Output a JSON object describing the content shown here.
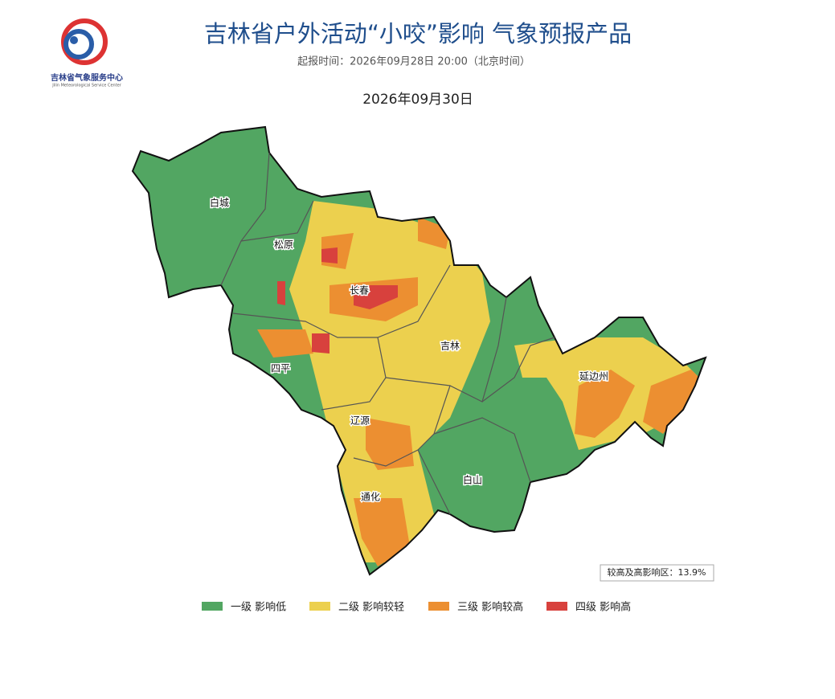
{
  "header": {
    "logo_name": "吉林省气象服务中心",
    "logo_subname": "Jilin Meteorological Service Center",
    "title": "吉林省户外活动“小咬”影响 气象预报产品",
    "issued": "起报时间：2026年09月28日 20:00（北京时间）",
    "date": "2026年09月30日"
  },
  "map": {
    "cities": [
      {
        "name": "白城"
      },
      {
        "name": "松原"
      },
      {
        "name": "长春"
      },
      {
        "name": "吉林"
      },
      {
        "name": "四平"
      },
      {
        "name": "辽源"
      },
      {
        "name": "延边州"
      },
      {
        "name": "白山"
      },
      {
        "name": "通化"
      }
    ],
    "stat": "较高及高影响区：13.9%"
  },
  "legend": [
    {
      "label": "一级 影响低",
      "color": "#52a662"
    },
    {
      "label": "二级 影响较轻",
      "color": "#ecd04e"
    },
    {
      "label": "三级 影响较高",
      "color": "#ec8f31"
    },
    {
      "label": "四级 影响高",
      "color": "#d8413d"
    }
  ]
}
